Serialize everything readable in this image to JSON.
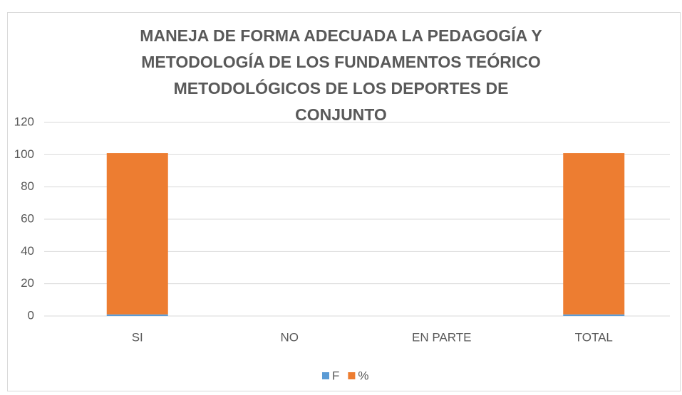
{
  "chart_data": {
    "type": "bar",
    "stacked": true,
    "title": "MANEJA DE FORMA ADECUADA LA PEDAGOGÍA Y METODOLOGÍA DE LOS FUNDAMENTOS TEÓRICO METODOLÓGICOS DE LOS DEPORTES DE CONJUNTO",
    "categories": [
      "SI",
      "NO",
      "EN PARTE",
      "TOTAL"
    ],
    "series": [
      {
        "name": "F",
        "color": "#5b9bd5",
        "values": [
          1,
          0,
          0,
          1
        ]
      },
      {
        "name": "%",
        "color": "#ed7d31",
        "values": [
          100,
          0,
          0,
          100
        ]
      }
    ],
    "ylim": [
      0,
      120
    ],
    "yticks": [
      0,
      20,
      40,
      60,
      80,
      100,
      120
    ],
    "grid": true,
    "legend": "bottom"
  }
}
